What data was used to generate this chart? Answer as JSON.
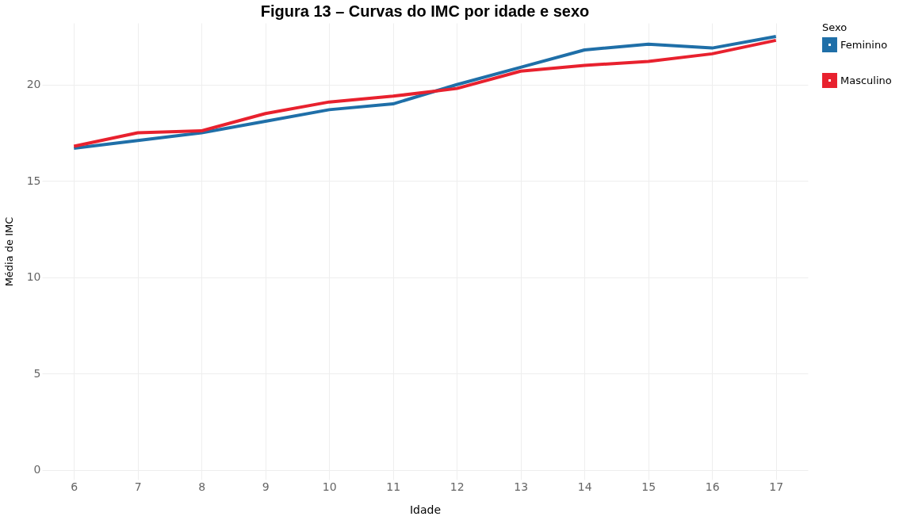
{
  "chart_data": {
    "type": "line",
    "title": "Figura 13 – Curvas do IMC por idade e sexo",
    "xlabel": "Idade",
    "ylabel": "Média de IMC",
    "legend_title": "Sexo",
    "x": [
      6,
      7,
      8,
      9,
      10,
      11,
      12,
      13,
      14,
      15,
      16,
      17
    ],
    "series": [
      {
        "name": "Feminino",
        "color": "#1f6fa8",
        "values": [
          16.7,
          17.1,
          17.5,
          18.1,
          18.7,
          19.0,
          20.0,
          20.9,
          21.8,
          22.1,
          21.9,
          22.5
        ]
      },
      {
        "name": "Masculino",
        "color": "#e8212e",
        "values": [
          16.8,
          17.5,
          17.6,
          18.5,
          19.1,
          19.4,
          19.8,
          20.7,
          21.0,
          21.2,
          21.6,
          22.3
        ]
      }
    ],
    "xlim": [
      5.5,
      17.5
    ],
    "xticks": [
      6,
      7,
      8,
      9,
      10,
      11,
      12,
      13,
      14,
      15,
      16,
      17
    ],
    "ylim": [
      -0.5,
      23.2
    ],
    "yticks": [
      0,
      5,
      10,
      15,
      20
    ],
    "grid": true,
    "legend": "top right",
    "marker": "none",
    "line_style": "solid"
  }
}
